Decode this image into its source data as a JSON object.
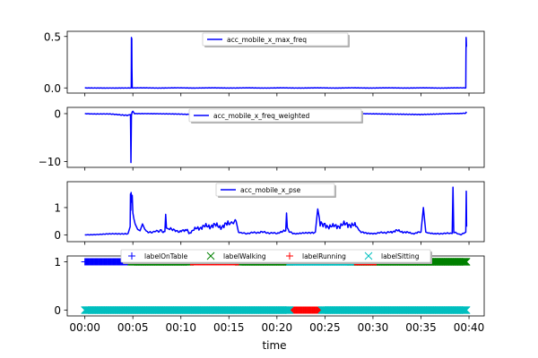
{
  "chart_data": [
    {
      "type": "line",
      "series": [
        {
          "name": "acc_mobile_x_max_freq",
          "color": "#0000ff"
        }
      ],
      "ylim": [
        -0.05,
        0.55
      ],
      "yticks": [
        {
          "v": 0.0,
          "label": "0.0"
        },
        {
          "v": 0.5,
          "label": "0.5"
        }
      ],
      "legend": "top-center",
      "baseline": 0.0,
      "points": [
        [
          0,
          0
        ],
        [
          290,
          0
        ],
        [
          291,
          0.49
        ],
        [
          292,
          0.05
        ],
        [
          293,
          0.48
        ],
        [
          294,
          0.2
        ],
        [
          295,
          0.1
        ],
        [
          296,
          0
        ],
        [
          2380,
          0
        ],
        [
          2381,
          0.3
        ],
        [
          2382,
          0.49
        ],
        [
          2383,
          0.46
        ],
        [
          2384,
          0.4
        ]
      ]
    },
    {
      "type": "line",
      "series": [
        {
          "name": "acc_mobile_x_freq_weighted",
          "color": "#0000ff"
        }
      ],
      "ylim": [
        -11.2,
        1.3
      ],
      "yticks": [
        {
          "v": 0,
          "label": "0"
        },
        {
          "v": -10,
          "label": "−10"
        }
      ],
      "legend": "top-center",
      "baseline": 0.0,
      "points": [
        [
          0,
          0
        ],
        [
          150,
          -0.1
        ],
        [
          270,
          -0.3
        ],
        [
          285,
          -0.2
        ],
        [
          288,
          -10.2
        ],
        [
          291,
          -0.4
        ],
        [
          295,
          0.3
        ],
        [
          300,
          0.5
        ],
        [
          310,
          0
        ],
        [
          600,
          -0.1
        ],
        [
          900,
          -0.2
        ],
        [
          1200,
          0
        ],
        [
          1300,
          -0.5
        ],
        [
          1500,
          -0.2
        ],
        [
          1600,
          -0.5
        ],
        [
          1700,
          0
        ],
        [
          1900,
          -0.1
        ],
        [
          2100,
          -0.2
        ],
        [
          2300,
          0
        ],
        [
          2380,
          0.1
        ],
        [
          2384,
          0.4
        ]
      ]
    },
    {
      "type": "line",
      "series": [
        {
          "name": "acc_mobile_x_pse",
          "color": "#0000ff"
        }
      ],
      "ylim": [
        -0.25,
        1.95
      ],
      "yticks": [
        {
          "v": 0,
          "label": "0"
        },
        {
          "v": 1,
          "label": "1"
        }
      ],
      "legend": "top-center",
      "baseline": 0.0,
      "points": [
        [
          0,
          0
        ],
        [
          270,
          0.05
        ],
        [
          283,
          0.3
        ],
        [
          285,
          1.5
        ],
        [
          287,
          0.9
        ],
        [
          289,
          1.55
        ],
        [
          292,
          1.2
        ],
        [
          296,
          1.45
        ],
        [
          300,
          0.8
        ],
        [
          306,
          0.6
        ],
        [
          314,
          0.4
        ],
        [
          322,
          0.3
        ],
        [
          330,
          0.2
        ],
        [
          345,
          0.15
        ],
        [
          360,
          0.4
        ],
        [
          375,
          0.2
        ],
        [
          390,
          0.1
        ],
        [
          420,
          0.1
        ],
        [
          460,
          0.15
        ],
        [
          500,
          0.12
        ],
        [
          505,
          0.75
        ],
        [
          510,
          0.25
        ],
        [
          530,
          0.2
        ],
        [
          560,
          0.15
        ],
        [
          590,
          0.1
        ],
        [
          640,
          0.2
        ],
        [
          650,
          0.05
        ],
        [
          700,
          0.25
        ],
        [
          750,
          0.3
        ],
        [
          800,
          0.35
        ],
        [
          850,
          0.3
        ],
        [
          900,
          0.4
        ],
        [
          945,
          0.5
        ],
        [
          960,
          0.1
        ],
        [
          1000,
          0.05
        ],
        [
          1100,
          0.1
        ],
        [
          1200,
          0.05
        ],
        [
          1255,
          0.15
        ],
        [
          1260,
          0.8
        ],
        [
          1265,
          0.2
        ],
        [
          1300,
          0.05
        ],
        [
          1350,
          0.05
        ],
        [
          1440,
          0.1
        ],
        [
          1455,
          0.95
        ],
        [
          1470,
          0.45
        ],
        [
          1500,
          0.35
        ],
        [
          1550,
          0.3
        ],
        [
          1600,
          0.35
        ],
        [
          1650,
          0.4
        ],
        [
          1700,
          0.3
        ],
        [
          1720,
          0.1
        ],
        [
          1800,
          0.05
        ],
        [
          1900,
          0.1
        ],
        [
          1950,
          0.15
        ],
        [
          2000,
          0.1
        ],
        [
          2050,
          0.05
        ],
        [
          2100,
          0.1
        ],
        [
          2115,
          1.0
        ],
        [
          2130,
          0.1
        ],
        [
          2150,
          0.05
        ],
        [
          2200,
          0.05
        ],
        [
          2295,
          0.05
        ],
        [
          2300,
          1.75
        ],
        [
          2305,
          0.1
        ],
        [
          2350,
          0
        ],
        [
          2380,
          0.1
        ],
        [
          2383,
          1.6
        ],
        [
          2385,
          0.3
        ]
      ]
    },
    {
      "type": "scatter",
      "series": [
        {
          "name": "labelOnTable",
          "marker": "+",
          "color": "#0000ff",
          "value": 1,
          "ranges": [
            [
              0,
              290
            ]
          ]
        },
        {
          "name": "labelWalking",
          "marker": "x",
          "color": "#008000",
          "value": 1,
          "ranges": [
            [
              290,
              660
            ],
            [
              960,
              1280
            ],
            [
              1660,
              2384
            ]
          ]
        },
        {
          "name": "labelRunning",
          "marker": "+",
          "color": "#ff0000",
          "value": 1,
          "ranges": [
            [
              660,
              960
            ],
            [
              1660,
              1820
            ]
          ]
        },
        {
          "name": "labelSitting",
          "marker": "x",
          "color": "#00bfbf",
          "value": 1,
          "ranges": [
            [
              1280,
              1660
            ]
          ]
        },
        {
          "name": "labelRunning",
          "marker": "+",
          "color": "#ff0000",
          "value": 0,
          "ranges": [
            [
              1280,
              1480
            ]
          ]
        },
        {
          "name": "labelSitting",
          "marker": "x",
          "color": "#00bfbf",
          "value": 0,
          "ranges": [
            [
              0,
              1280
            ],
            [
              1480,
              2384
            ]
          ]
        }
      ],
      "ylim": [
        -0.12,
        1.12
      ],
      "yticks": [
        {
          "v": 0,
          "label": "0"
        },
        {
          "v": 1,
          "label": "1"
        }
      ],
      "legend": "top-center",
      "xlabel": "time"
    }
  ],
  "x_axis": {
    "domain_seconds": [
      -110,
      2495
    ],
    "ticks": [
      {
        "t": 0,
        "label": "00:00"
      },
      {
        "t": 300,
        "label": "00:05"
      },
      {
        "t": 600,
        "label": "00:10"
      },
      {
        "t": 900,
        "label": "00:15"
      },
      {
        "t": 1200,
        "label": "00:20"
      },
      {
        "t": 1500,
        "label": "00:25"
      },
      {
        "t": 1800,
        "label": "00:30"
      },
      {
        "t": 2100,
        "label": "00:35"
      },
      {
        "t": 2400,
        "label": "00:40"
      }
    ]
  }
}
